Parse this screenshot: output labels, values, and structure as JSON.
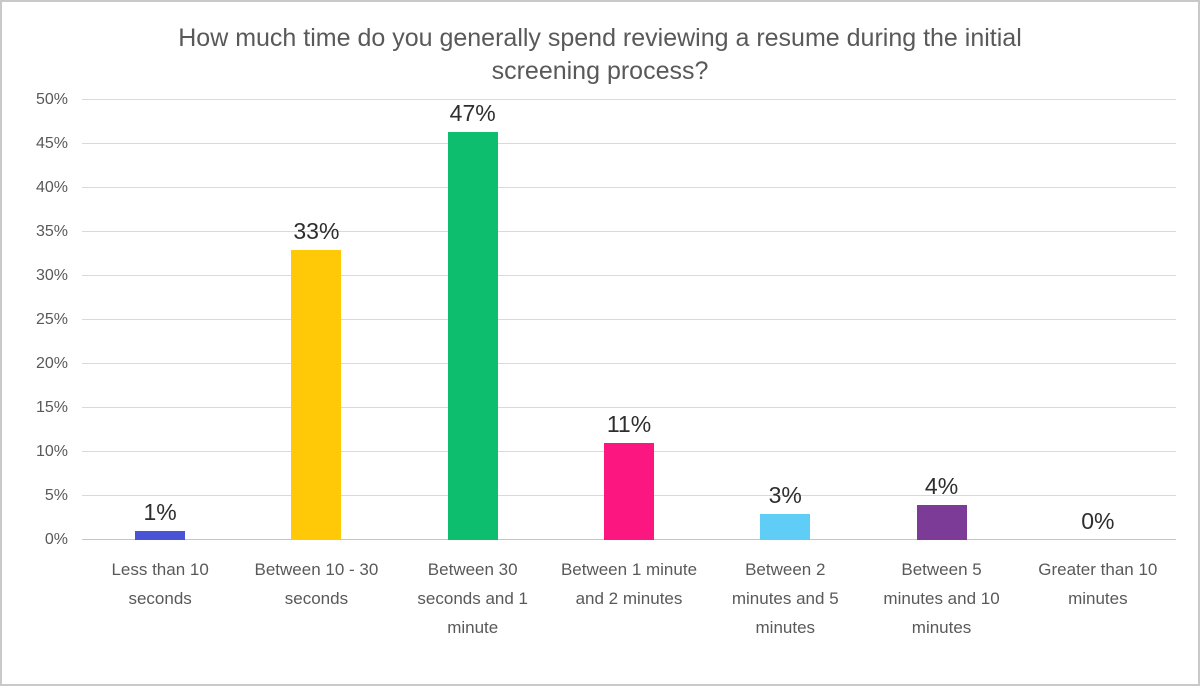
{
  "chart_data": {
    "type": "bar",
    "title": "How much time do you generally spend reviewing a resume during the initial screening process?",
    "categories": [
      "Less than 10 seconds",
      "Between 10 - 30 seconds",
      "Between 30 seconds and 1 minute",
      "Between 1 minute and 2 minutes",
      "Between 2 minutes and 5 minutes",
      "Between 5 minutes and 10 minutes",
      "Greater than 10 minutes"
    ],
    "values": [
      1,
      33,
      47,
      11,
      3,
      4,
      0
    ],
    "value_labels": [
      "1%",
      "33%",
      "47%",
      "11%",
      "3%",
      "4%",
      "0%"
    ],
    "bar_colors": [
      "#4a52d6",
      "#ffc907",
      "#0dbe6f",
      "#fb1680",
      "#5fcdf5",
      "#7c3b97",
      "#999999"
    ],
    "xlabel": "",
    "ylabel": "",
    "ylim": [
      0,
      50
    ],
    "yticks": [
      "0%",
      "5%",
      "10%",
      "15%",
      "20%",
      "25%",
      "30%",
      "35%",
      "40%",
      "45%",
      "50%"
    ],
    "grid": true,
    "legend_position": "none"
  },
  "colors": {
    "title_text": "#595959",
    "axis_text": "#595959",
    "value_label_text": "#2e2e2e",
    "gridline": "#d9d9d9",
    "axis_line": "#c6c6c6",
    "background": "#ffffff",
    "frame_border": "#c9c9c9"
  }
}
